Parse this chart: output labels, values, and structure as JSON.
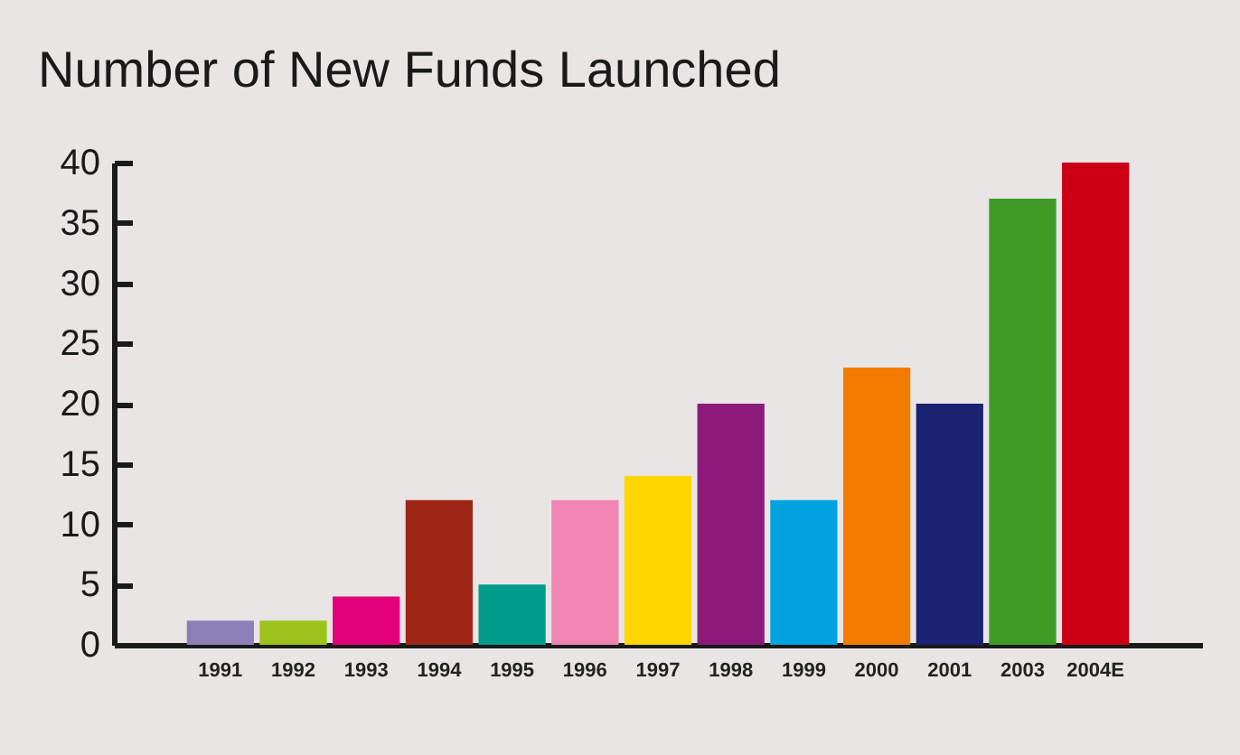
{
  "chart_data": {
    "type": "bar",
    "title": "Number of New Funds Launched",
    "categories": [
      "1991",
      "1992",
      "1993",
      "1994",
      "1995",
      "1996",
      "1997",
      "1998",
      "1999",
      "2000",
      "2001",
      "2003",
      "2004E"
    ],
    "values": [
      2,
      2,
      4,
      12,
      5,
      12,
      14,
      20,
      12,
      23,
      20,
      37,
      40
    ],
    "colors": [
      "#8c7fb8",
      "#9dc21c",
      "#e2007a",
      "#9e2617",
      "#009b8a",
      "#ee86b1",
      "#ffd600",
      "#8b1a7a",
      "#00a3e0",
      "#f27b00",
      "#1a2372",
      "#3f9a26",
      "#cc0014"
    ],
    "ylim": [
      0,
      40
    ],
    "yticks": [
      0,
      5,
      10,
      15,
      20,
      25,
      30,
      35,
      40
    ]
  }
}
